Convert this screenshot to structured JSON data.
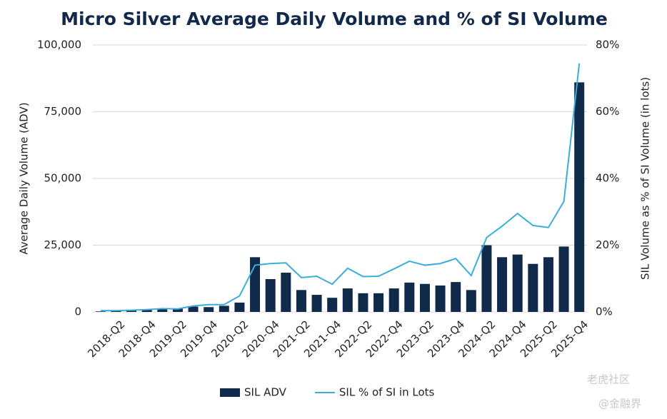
{
  "chart_data": {
    "type": "bar-line",
    "title": "Micro Silver Average Daily Volume and % of SI Volume",
    "y_label": "Average Daily Volume (ADV)",
    "y2_label": "SIL Volume as % of SI Volume (in lots)",
    "categories": [
      null,
      "2018-Q2",
      null,
      "2018-Q4",
      null,
      "2019-Q2",
      null,
      "2019-Q4",
      null,
      "2020-Q2",
      null,
      "2020-Q4",
      null,
      "2021-Q2",
      null,
      "2021-Q4",
      null,
      "2022-Q2",
      null,
      "2022-Q4",
      null,
      "2023-Q2",
      null,
      "2023-Q4",
      null,
      "2024-Q2",
      null,
      "2024-Q4",
      null,
      "2025-Q2",
      null,
      "2025-Q4"
    ],
    "series": [
      {
        "name": "SIL ADV",
        "type": "bar",
        "color": "#102a4c",
        "values": [
          200,
          300,
          500,
          800,
          1000,
          1200,
          2000,
          1800,
          2300,
          3500,
          20500,
          12300,
          14700,
          8200,
          6400,
          5300,
          8800,
          7000,
          7000,
          8800,
          11000,
          10500,
          9900,
          11200,
          8200,
          25000,
          20500,
          21500,
          18000,
          20500,
          24500,
          86000
        ]
      },
      {
        "name": "SIL % of SI in Lots",
        "type": "line",
        "axis": "y2",
        "color": "#3aaed8",
        "values": [
          0.4,
          0.4,
          0.5,
          0.7,
          1.0,
          0.9,
          1.8,
          2.2,
          2.2,
          4.8,
          14.0,
          14.5,
          14.7,
          10.3,
          10.7,
          8.3,
          13.1,
          10.6,
          10.7,
          12.9,
          15.2,
          14.0,
          14.5,
          16.0,
          10.9,
          22.3,
          25.7,
          29.5,
          25.9,
          25.3,
          33.1,
          74.5
        ]
      }
    ],
    "ylim": [
      0,
      100000
    ],
    "yticks": [
      0,
      {
        "value": 25000,
        "label": "25,000"
      },
      {
        "value": 50000,
        "label": "50,000"
      },
      {
        "value": 75000,
        "label": "75,000"
      },
      {
        "value": 100000,
        "label": "100,000"
      }
    ],
    "y2lim": [
      0,
      80
    ],
    "y2ticks": [
      {
        "value": 0,
        "label": "0%"
      },
      {
        "value": 20,
        "label": "20%"
      },
      {
        "value": 40,
        "label": "40%"
      },
      {
        "value": 60,
        "label": "60%"
      },
      {
        "value": 80,
        "label": "80%"
      }
    ],
    "grid": true,
    "legend": "bottom"
  },
  "watermark": {
    "top": "老虎社区",
    "bottom": "@金融界"
  }
}
